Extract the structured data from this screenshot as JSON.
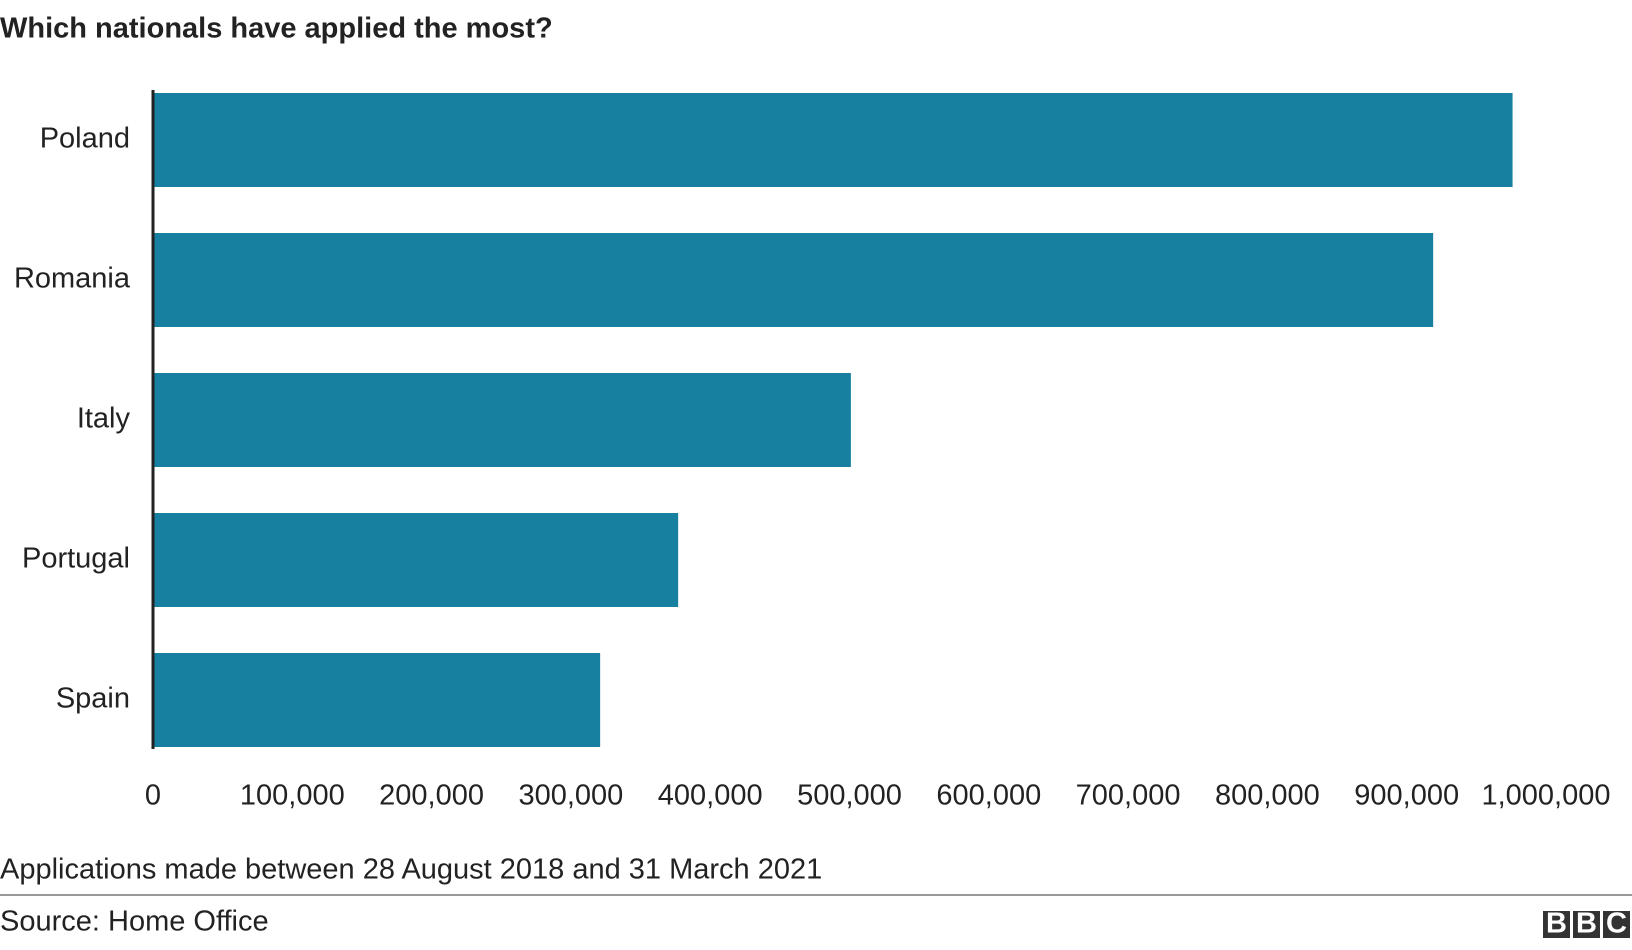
{
  "chart_data": {
    "type": "bar",
    "orientation": "horizontal",
    "title": "Which nationals have applied the most?",
    "categories": [
      "Poland",
      "Romania",
      "Italy",
      "Portugal",
      "Spain"
    ],
    "values": [
      976000,
      919000,
      501000,
      377000,
      321000
    ],
    "color": "#1780a1",
    "xlim": [
      0,
      1000000
    ],
    "xticks": [
      0,
      {
        "value": 100000,
        "label": "100,000"
      },
      {
        "value": 200000,
        "label": "200,000"
      },
      {
        "value": 300000,
        "label": "300,000"
      },
      {
        "value": 400000,
        "label": "400,000"
      },
      {
        "value": 500000,
        "label": "500,000"
      },
      {
        "value": 600000,
        "label": "600,000"
      },
      {
        "value": 700000,
        "label": "700,000"
      },
      {
        "value": 800000,
        "label": "800,000"
      },
      {
        "value": 900000,
        "label": "900,000"
      },
      {
        "value": 1000000,
        "label": "1,000,000"
      }
    ],
    "grid": false,
    "note": "Applications made between 28 August 2018 and 31 March 2021",
    "source": "Source: Home Office",
    "logo": [
      "B",
      "B",
      "C"
    ]
  }
}
